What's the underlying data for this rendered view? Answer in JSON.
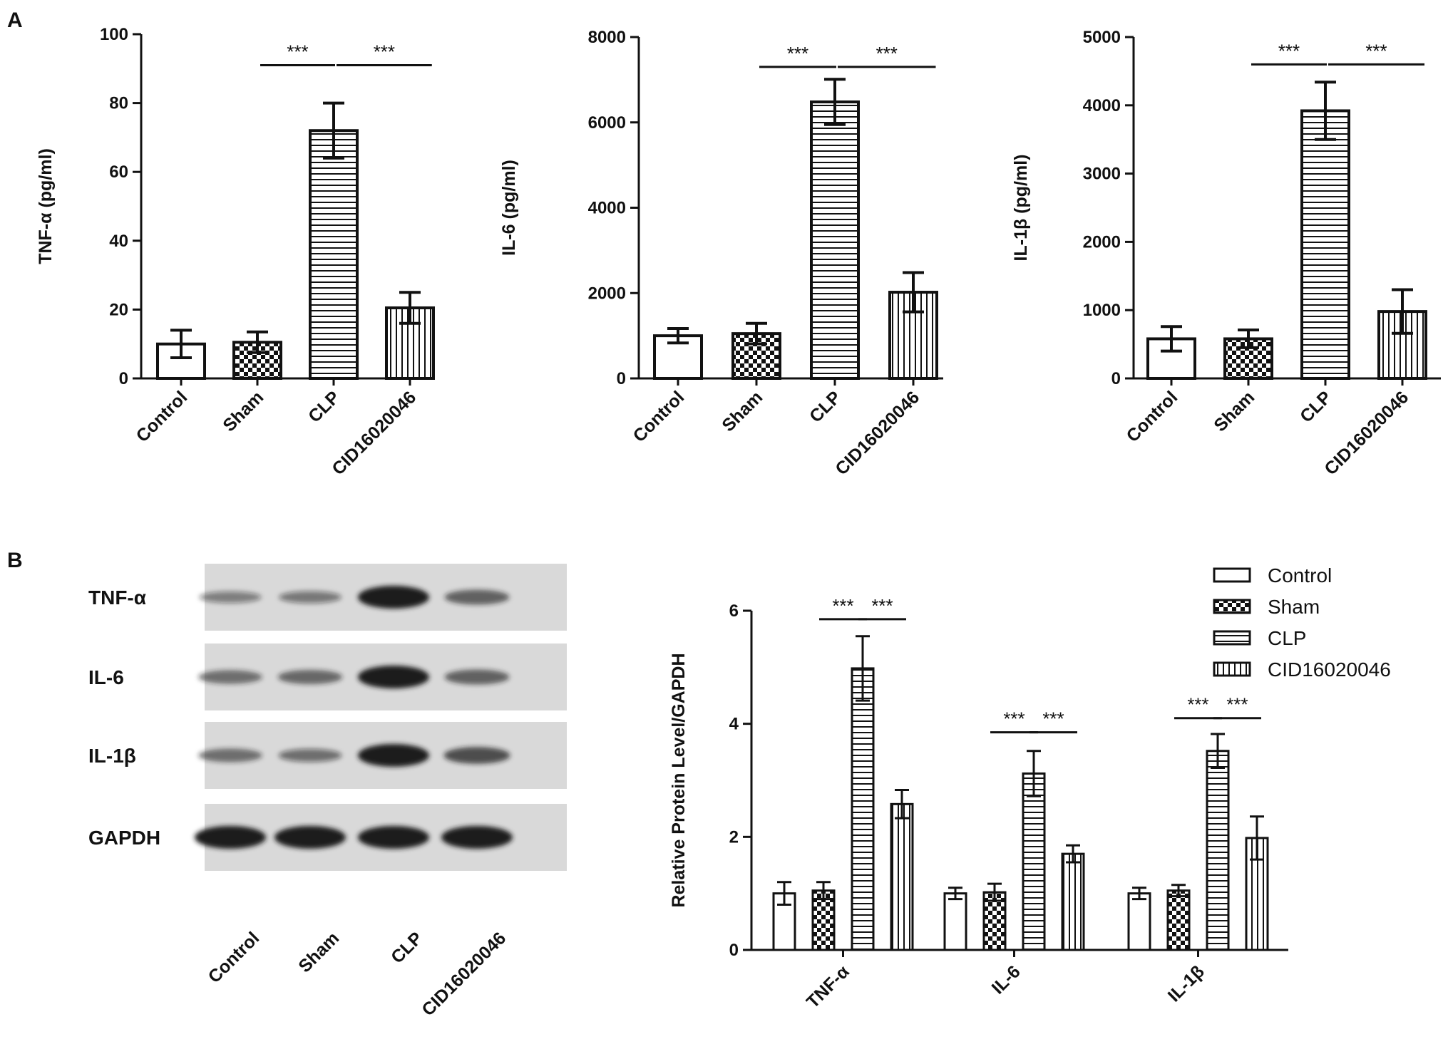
{
  "panels": {
    "a": "A",
    "b": "B"
  },
  "colors": {
    "ink": "#111111",
    "blot_bg": "#d9d9d9",
    "band": "#1a1a1a"
  },
  "significance": "***",
  "patterns": [
    "none",
    "checker",
    "hlines",
    "vlines"
  ],
  "chart_data": [
    {
      "type": "bar",
      "ylabel": "TNF-α (pg/ml)",
      "categories": [
        "Control",
        "Sham",
        "CLP",
        "CID16020046"
      ],
      "values": [
        10,
        10.5,
        72,
        20.5
      ],
      "errors": [
        4,
        3,
        8,
        4.5
      ],
      "ylim": [
        0,
        100
      ],
      "yticks": [
        0,
        20,
        40,
        60,
        80,
        100
      ],
      "annotations": [
        {
          "from": 1,
          "to": 2,
          "y": 91,
          "text": "***"
        },
        {
          "from": 2,
          "to": 3,
          "y": 91,
          "text": "***"
        }
      ]
    },
    {
      "type": "bar",
      "ylabel": "IL-6 (pg/ml)",
      "categories": [
        "Control",
        "Sham",
        "CLP",
        "CID16020046"
      ],
      "values": [
        1000,
        1050,
        6480,
        2020
      ],
      "errors": [
        170,
        240,
        530,
        460
      ],
      "ylim": [
        0,
        8000
      ],
      "yticks": [
        0,
        2000,
        4000,
        6000,
        8000
      ],
      "annotations": [
        {
          "from": 1,
          "to": 2,
          "y": 7300,
          "text": "***"
        },
        {
          "from": 2,
          "to": 3,
          "y": 7300,
          "text": "***"
        }
      ]
    },
    {
      "type": "bar",
      "ylabel": "IL-1β (pg/ml)",
      "categories": [
        "Control",
        "Sham",
        "CLP",
        "CID16020046"
      ],
      "values": [
        580,
        580,
        3920,
        980
      ],
      "errors": [
        180,
        130,
        420,
        320
      ],
      "ylim": [
        0,
        5000
      ],
      "yticks": [
        0,
        1000,
        2000,
        3000,
        4000,
        5000
      ],
      "annotations": [
        {
          "from": 1,
          "to": 2,
          "y": 4600,
          "text": "***"
        },
        {
          "from": 2,
          "to": 3,
          "y": 4600,
          "text": "***"
        }
      ]
    },
    {
      "type": "bar",
      "ylabel": "Relative Protein Level/GAPDH",
      "categories": [
        "TNF-α",
        "IL-6",
        "IL-1β"
      ],
      "series": [
        {
          "name": "Control",
          "values": [
            1.0,
            1.0,
            1.0
          ],
          "errors": [
            0.2,
            0.1,
            0.1
          ]
        },
        {
          "name": "Sham",
          "values": [
            1.05,
            1.02,
            1.05
          ],
          "errors": [
            0.15,
            0.15,
            0.1
          ]
        },
        {
          "name": "CLP",
          "values": [
            4.98,
            3.12,
            3.52
          ],
          "errors": [
            0.57,
            0.4,
            0.3
          ]
        },
        {
          "name": "CID16020046",
          "values": [
            2.58,
            1.7,
            1.98
          ],
          "errors": [
            0.25,
            0.15,
            0.38
          ]
        }
      ],
      "ylim": [
        0,
        6
      ],
      "yticks": [
        0,
        2,
        4,
        6
      ],
      "legend": "top-right",
      "annotations": [
        {
          "group": 0,
          "from": 1,
          "to": 2,
          "y": 5.85,
          "text": "***"
        },
        {
          "group": 0,
          "from": 2,
          "to": 3,
          "y": 5.85,
          "text": "***"
        },
        {
          "group": 1,
          "from": 1,
          "to": 2,
          "y": 3.85,
          "text": "***"
        },
        {
          "group": 1,
          "from": 2,
          "to": 3,
          "y": 3.85,
          "text": "***"
        },
        {
          "group": 2,
          "from": 1,
          "to": 2,
          "y": 4.1,
          "text": "***"
        },
        {
          "group": 2,
          "from": 2,
          "to": 3,
          "y": 4.1,
          "text": "***"
        }
      ]
    }
  ],
  "western_blot": {
    "rows": [
      {
        "label": "TNF-α",
        "intensity": [
          0.28,
          0.32,
          1.0,
          0.5
        ]
      },
      {
        "label": "IL-6",
        "intensity": [
          0.42,
          0.46,
          1.0,
          0.5
        ]
      },
      {
        "label": "IL-1β",
        "intensity": [
          0.42,
          0.38,
          1.0,
          0.62
        ]
      },
      {
        "label": "GAPDH",
        "intensity": [
          1.0,
          1.0,
          1.0,
          1.0
        ]
      }
    ],
    "lanes": [
      "Control",
      "Sham",
      "CLP",
      "CID16020046"
    ]
  }
}
